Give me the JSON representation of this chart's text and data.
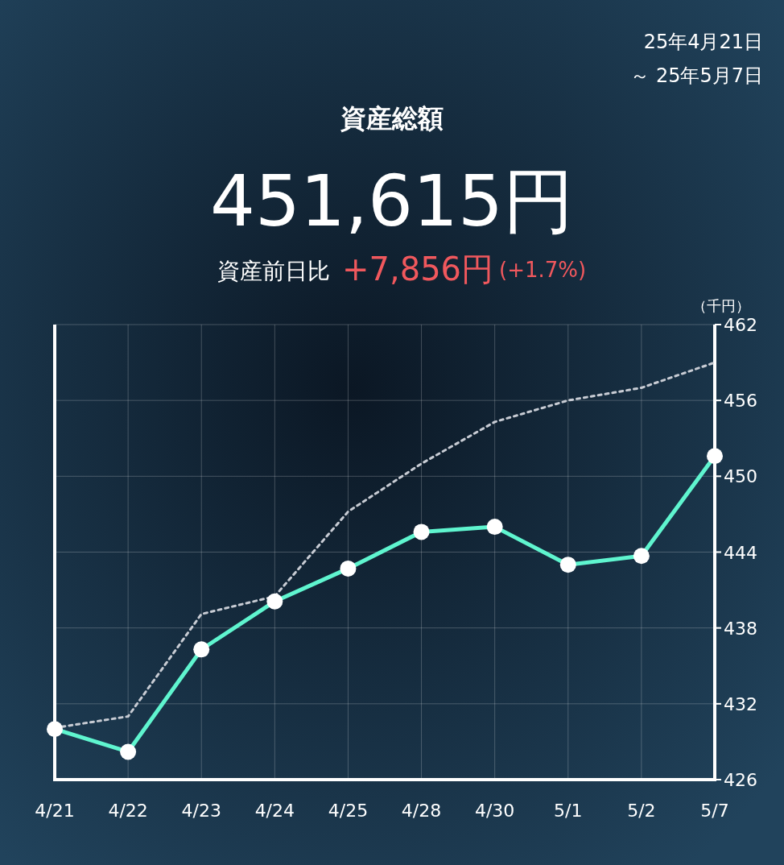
{
  "chart_data": {
    "type": "line",
    "title": "資産総額",
    "subtitle": "451,615円",
    "ylabel": "（千円）",
    "annotations": [
      "資産前日比",
      "+7,856円",
      "(+1.7%)",
      "25年4月21日",
      "～ 25年5月7日"
    ],
    "categories": [
      "4/21",
      "4/22",
      "4/23",
      "4/24",
      "4/25",
      "4/28",
      "4/30",
      "5/1",
      "5/2",
      "5/7"
    ],
    "series": [
      {
        "color": "#c8ccd4",
        "line_style": "dotted",
        "marker": "none",
        "values": [
          430.1,
          431.0,
          439.1,
          440.5,
          447.2,
          451.0,
          454.3,
          456.0,
          457.0,
          459.0
        ]
      },
      {
        "color": "#5ff5cf",
        "line_style": "solid",
        "marker": "circle",
        "values": [
          430.0,
          428.2,
          436.3,
          440.1,
          442.7,
          445.6,
          446.0,
          443.0,
          443.7,
          451.6
        ]
      }
    ],
    "ylim": [
      426,
      462
    ],
    "yticks": [
      426,
      432,
      438,
      444,
      450,
      456,
      462
    ],
    "grid": true
  }
}
